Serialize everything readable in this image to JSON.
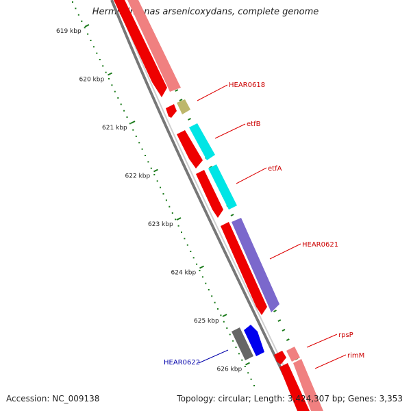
{
  "title": "Herminiimonas arsenicoxydans, complete genome",
  "footer": {
    "accession": "Accession: NC_009138",
    "summary": "Topology: circular; Length: 3,424,307 bp; Genes: 3,353"
  },
  "scale_labels": [
    "619 kbp",
    "620 kbp",
    "621 kbp",
    "622 kbp",
    "623 kbp",
    "624 kbp",
    "625 kbp",
    "626 kbp"
  ],
  "genes": [
    {
      "name": "HEAR0618",
      "label_color": "#cc0000"
    },
    {
      "name": "etfB",
      "label_color": "#cc0000"
    },
    {
      "name": "etfA",
      "label_color": "#cc0000"
    },
    {
      "name": "HEAR0621",
      "label_color": "#cc0000"
    },
    {
      "name": "rpsP",
      "label_color": "#cc0000"
    },
    {
      "name": "rimM",
      "label_color": "#cc0000"
    },
    {
      "name": "HEAR0622",
      "label_color": "#0000aa"
    }
  ],
  "colors": {
    "cds": "#ee0000",
    "cds_light": "#f08080",
    "etf": "#00e5e5",
    "hear0621": "#7b68cc",
    "hear0618_small": "#bdb76b",
    "hear0622": "#0000ee",
    "rna_grey": "#666666",
    "backbone": "#888888",
    "ticks": "#1a7a1a"
  }
}
